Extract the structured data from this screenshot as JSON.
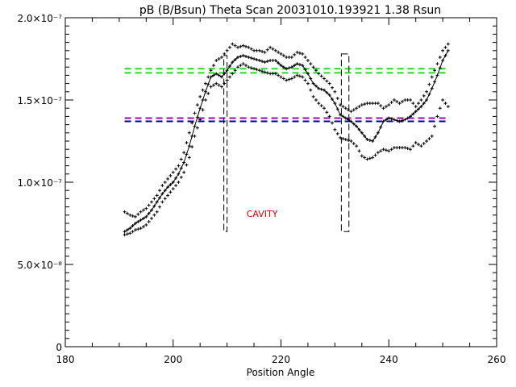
{
  "chart_data": {
    "type": "scatter",
    "title": "pB (B/Bsun) Theta Scan 20031010.193921 1.38 Rsun",
    "xlabel": "Position Angle",
    "ylabel": "",
    "xlim": [
      180,
      260
    ],
    "ylim": [
      0,
      2e-07
    ],
    "x_ticks": [
      {
        "value": 180,
        "label": "180"
      },
      {
        "value": 200,
        "label": "200"
      },
      {
        "value": 220,
        "label": "220"
      },
      {
        "value": 240,
        "label": "240"
      },
      {
        "value": 260,
        "label": "260"
      }
    ],
    "y_ticks": [
      {
        "value": 0,
        "label": "0"
      },
      {
        "value": 5e-08,
        "label": "5.0×10⁻⁸"
      },
      {
        "value": 1e-07,
        "label": "1.0×10⁻⁷"
      },
      {
        "value": 1.5e-07,
        "label": "1.5×10⁻⁷"
      },
      {
        "value": 2e-07,
        "label": "2.0×10⁻⁷"
      }
    ],
    "smooth_curve": {
      "x": [
        191,
        192,
        193,
        194,
        195,
        196,
        197,
        198,
        199,
        200,
        201,
        202,
        203,
        204,
        205,
        206,
        207,
        208,
        209,
        210,
        211,
        212,
        213,
        214,
        215,
        216,
        217,
        218,
        219,
        220,
        221,
        222,
        223,
        224,
        225,
        226,
        227,
        228,
        229,
        230,
        231,
        232,
        233,
        234,
        235,
        236,
        237,
        238,
        239,
        240,
        241,
        242,
        243,
        244,
        245,
        246,
        247,
        248,
        249,
        250,
        251
      ],
      "y": [
        7e-08,
        7.2e-08,
        7.5e-08,
        7.7e-08,
        7.9e-08,
        8.3e-08,
        8.8e-08,
        9.3e-08,
        9.7e-08,
        1e-07,
        1.05e-07,
        1.12e-07,
        1.22e-07,
        1.34e-07,
        1.45e-07,
        1.55e-07,
        1.64e-07,
        1.66e-07,
        1.64e-07,
        1.68e-07,
        1.73e-07,
        1.76e-07,
        1.77e-07,
        1.76e-07,
        1.75e-07,
        1.74e-07,
        1.73e-07,
        1.74e-07,
        1.74e-07,
        1.71e-07,
        1.69e-07,
        1.7e-07,
        1.72e-07,
        1.71e-07,
        1.66e-07,
        1.6e-07,
        1.57e-07,
        1.56e-07,
        1.53e-07,
        1.48e-07,
        1.41e-07,
        1.39e-07,
        1.37e-07,
        1.34e-07,
        1.3e-07,
        1.26e-07,
        1.25e-07,
        1.3e-07,
        1.37e-07,
        1.39e-07,
        1.38e-07,
        1.37e-07,
        1.38e-07,
        1.4e-07,
        1.43e-07,
        1.46e-07,
        1.5e-07,
        1.57e-07,
        1.65e-07,
        1.74e-07,
        1.8e-07
      ]
    },
    "upper_points": {
      "x": [
        191,
        192,
        193,
        194,
        195,
        196,
        197,
        198,
        199,
        200,
        201,
        202,
        203,
        204,
        205,
        206,
        207,
        208,
        209,
        210,
        211,
        212,
        213,
        214,
        215,
        216,
        217,
        218,
        219,
        220,
        221,
        222,
        223,
        224,
        225,
        226,
        227,
        228,
        229,
        230,
        231,
        232,
        233,
        234,
        235,
        236,
        237,
        238,
        239,
        240,
        241,
        242,
        243,
        244,
        245,
        246,
        247,
        248,
        249,
        250,
        251
      ],
      "y": [
        8.2e-08,
        8e-08,
        7.9e-08,
        8.2e-08,
        8.4e-08,
        8.8e-08,
        9.2e-08,
        9.8e-08,
        1.02e-07,
        1.06e-07,
        1.1e-07,
        1.18e-07,
        1.3e-07,
        1.42e-07,
        1.52e-07,
        1.6e-07,
        1.68e-07,
        1.74e-07,
        1.76e-07,
        1.8e-07,
        1.84e-07,
        1.82e-07,
        1.83e-07,
        1.82e-07,
        1.8e-07,
        1.8e-07,
        1.79e-07,
        1.82e-07,
        1.8e-07,
        1.78e-07,
        1.76e-07,
        1.76e-07,
        1.79e-07,
        1.78e-07,
        1.74e-07,
        1.7e-07,
        1.66e-07,
        1.63e-07,
        1.6e-07,
        1.55e-07,
        1.47e-07,
        1.45e-07,
        1.43e-07,
        1.45e-07,
        1.47e-07,
        1.48e-07,
        1.48e-07,
        1.48e-07,
        1.45e-07,
        1.47e-07,
        1.5e-07,
        1.48e-07,
        1.5e-07,
        1.5e-07,
        1.46e-07,
        1.5e-07,
        1.55e-07,
        1.64e-07,
        1.72e-07,
        1.8e-07,
        1.84e-07
      ]
    },
    "lower_points": {
      "x": [
        191,
        192,
        193,
        194,
        195,
        196,
        197,
        198,
        199,
        200,
        201,
        202,
        203,
        204,
        205,
        206,
        207,
        208,
        209,
        210,
        211,
        212,
        213,
        214,
        215,
        216,
        217,
        218,
        219,
        220,
        221,
        222,
        223,
        224,
        225,
        226,
        227,
        228,
        229,
        230,
        231,
        232,
        233,
        234,
        235,
        236,
        237,
        238,
        239,
        240,
        241,
        242,
        243,
        244,
        245,
        246,
        247,
        248,
        249,
        250,
        251
      ],
      "y": [
        6.8e-08,
        6.9e-08,
        7.1e-08,
        7.2e-08,
        7.4e-08,
        7.8e-08,
        8.2e-08,
        8.8e-08,
        9.2e-08,
        9.6e-08,
        1e-07,
        1.06e-07,
        1.15e-07,
        1.28e-07,
        1.38e-07,
        1.5e-07,
        1.58e-07,
        1.6e-07,
        1.58e-07,
        1.62e-07,
        1.66e-07,
        1.7e-07,
        1.72e-07,
        1.7e-07,
        1.69e-07,
        1.68e-07,
        1.67e-07,
        1.66e-07,
        1.66e-07,
        1.64e-07,
        1.62e-07,
        1.63e-07,
        1.65e-07,
        1.64e-07,
        1.6e-07,
        1.52e-07,
        1.48e-07,
        1.45e-07,
        1.4e-07,
        1.32e-07,
        1.27e-07,
        1.26e-07,
        1.25e-07,
        1.22e-07,
        1.16e-07,
        1.14e-07,
        1.15e-07,
        1.18e-07,
        1.2e-07,
        1.19e-07,
        1.21e-07,
        1.21e-07,
        1.21e-07,
        1.2e-07,
        1.24e-07,
        1.22e-07,
        1.25e-07,
        1.28e-07,
        1.4e-07,
        1.5e-07,
        1.46e-07
      ]
    },
    "reference_lines": [
      {
        "y": 1.69e-07,
        "color": "#22dd22",
        "style": "dashed"
      },
      {
        "y": 1.665e-07,
        "color": "#22dd22",
        "style": "dashed"
      },
      {
        "y": 1.39e-07,
        "color": "#aa00aa",
        "style": "dashed"
      },
      {
        "y": 1.37e-07,
        "color": "#000099",
        "style": "dashed"
      }
    ],
    "cavity_boxes": [
      {
        "x0": 209.4,
        "x1": 210.0,
        "y0": 7e-08,
        "y1": 1.77e-07
      },
      {
        "x0": 231.2,
        "x1": 232.6,
        "y0": 7e-08,
        "y1": 1.78e-07
      }
    ],
    "annotation": {
      "text": "CAVITY",
      "x": 216.5,
      "y": 7.9e-08,
      "color": "#dd0000"
    },
    "grid": false,
    "colors": {
      "data": "#000000",
      "axes": "#000000",
      "background": "#ffffff"
    }
  }
}
